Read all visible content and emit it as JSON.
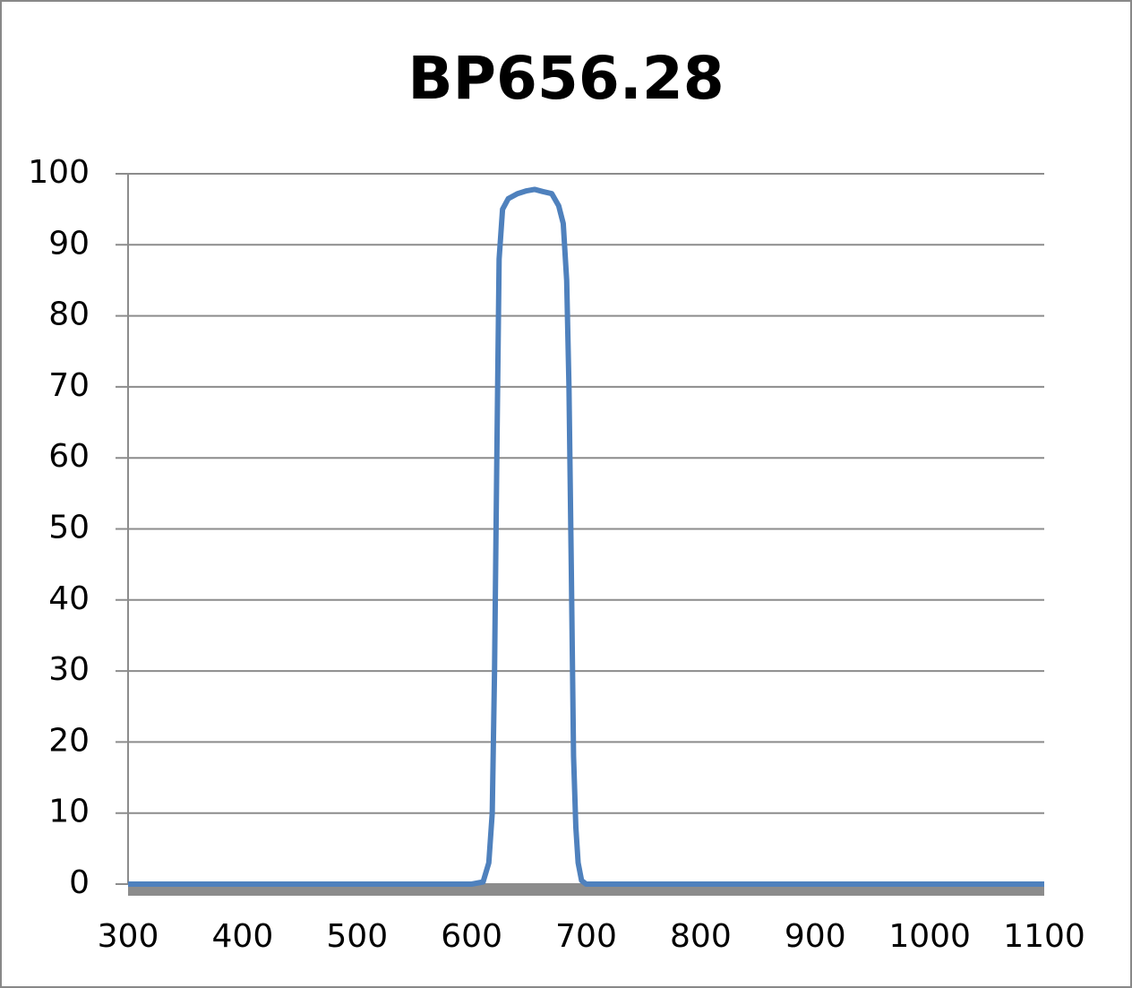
{
  "chart_data": {
    "type": "line",
    "title": "BP656.28",
    "x": [
      300,
      400,
      500,
      600,
      610,
      615,
      618,
      620,
      622,
      624,
      627,
      632,
      640,
      648,
      655,
      662,
      670,
      676,
      680,
      683,
      685,
      687,
      689,
      691,
      693,
      696,
      700,
      800,
      900,
      1000,
      1100
    ],
    "series": [
      {
        "name": "BP656.28",
        "color": "#4f81bd",
        "values": [
          0,
          0,
          0,
          0,
          0.3,
          3,
          10,
          30,
          60,
          88,
          95,
          96.5,
          97.2,
          97.6,
          97.8,
          97.5,
          97.2,
          95.5,
          93,
          85,
          70,
          45,
          18,
          8,
          3,
          0.5,
          0,
          0,
          0,
          0,
          0
        ]
      }
    ],
    "xlim": [
      300,
      1100
    ],
    "xticks": [
      300,
      400,
      500,
      600,
      700,
      800,
      900,
      1000,
      1100
    ],
    "ylim": [
      0,
      100
    ],
    "yticks": [
      0,
      10,
      20,
      30,
      40,
      50,
      60,
      70,
      80,
      90,
      100
    ],
    "grid": true
  }
}
